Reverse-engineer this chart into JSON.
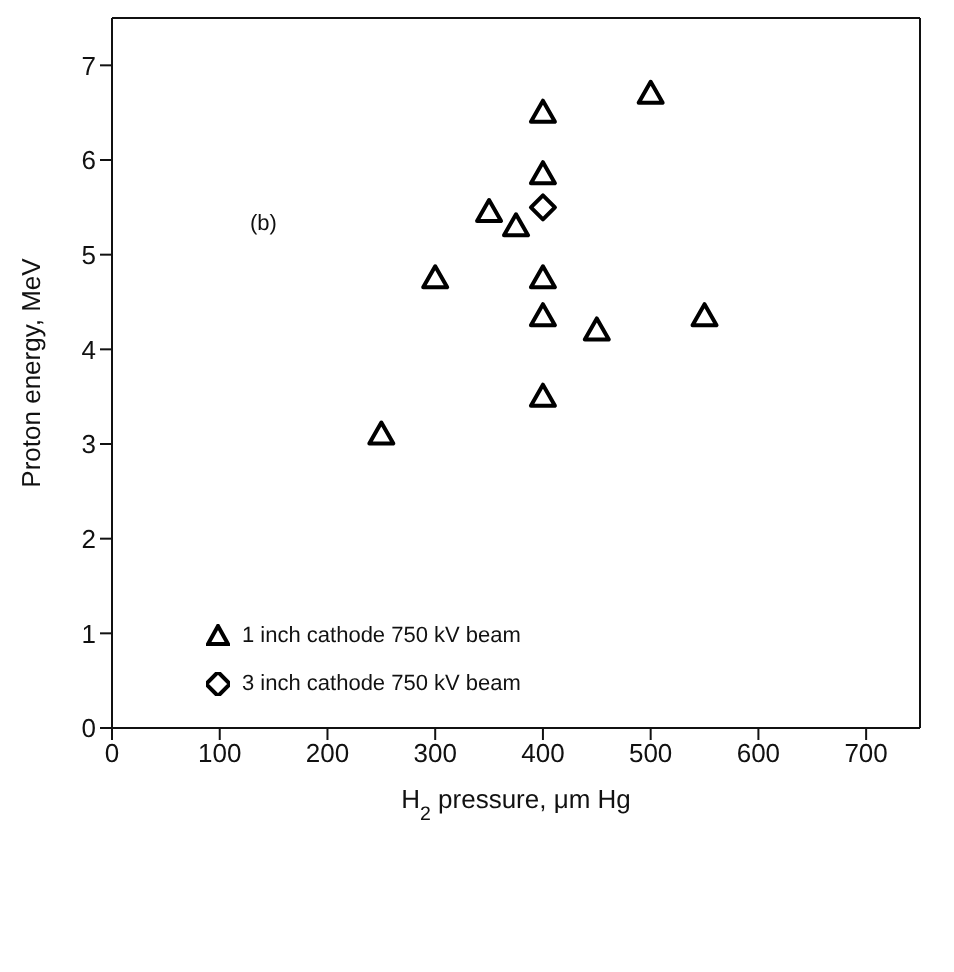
{
  "chart_data": {
    "type": "scatter",
    "xlabel": "H$_{2}$ pressure, μm Hg",
    "ylabel": "Proton energy, MeV",
    "annotations": [
      "(b)"
    ],
    "series": [
      {
        "name": "1 inch cathode 750 kV beam",
        "color": "#000000",
        "marker": "triangle",
        "x": [
          250,
          300,
          350,
          375,
          400,
          400,
          400,
          400,
          400,
          450,
          500,
          550
        ],
        "values": [
          3.1,
          4.75,
          5.45,
          5.3,
          3.5,
          4.35,
          4.75,
          5.85,
          6.5,
          4.2,
          6.7,
          4.35
        ]
      },
      {
        "name": "3 inch cathode 750 kV beam",
        "color": "#000000",
        "marker": "diamond",
        "x": [
          400
        ],
        "values": [
          5.5
        ]
      }
    ],
    "xlim": [
      0,
      750
    ],
    "xticks": [
      0,
      100,
      200,
      300,
      400,
      500,
      600,
      700
    ],
    "ylim": [
      0,
      7.5
    ],
    "yticks": [
      0,
      1,
      2,
      3,
      4,
      5,
      6,
      7
    ],
    "legend": "bottom left"
  }
}
